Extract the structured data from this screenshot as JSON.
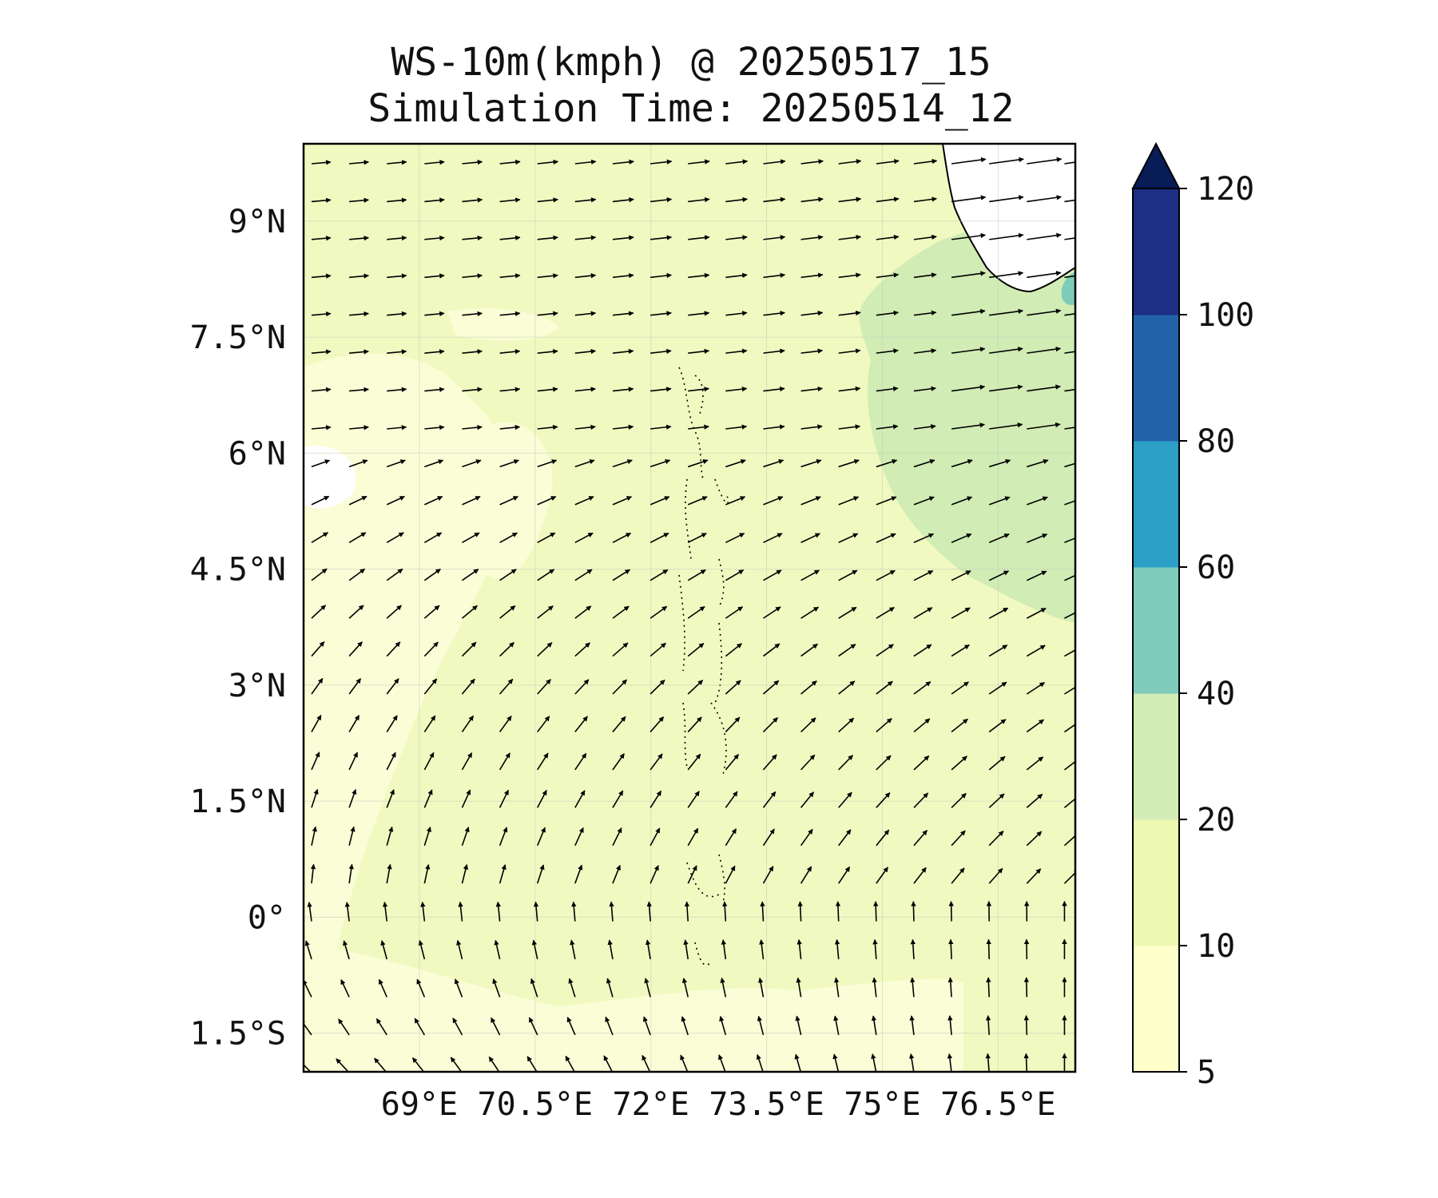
{
  "title": {
    "line1": "WS-10m(kmph) @ 20250517_15",
    "line2": "Simulation Time: 20250514_12"
  },
  "map": {
    "lon_range": [
      67.5,
      77.5
    ],
    "lat_range": [
      -2.0,
      10.0
    ],
    "gridlines": true,
    "x_ticks": [
      {
        "value": 69.0,
        "label": "69°E"
      },
      {
        "value": 70.5,
        "label": "70.5°E"
      },
      {
        "value": 72.0,
        "label": "72°E"
      },
      {
        "value": 73.5,
        "label": "73.5°E"
      },
      {
        "value": 75.0,
        "label": "75°E"
      },
      {
        "value": 76.5,
        "label": "76.5°E"
      }
    ],
    "y_ticks": [
      {
        "value": 9.0,
        "label": "9°N"
      },
      {
        "value": 7.5,
        "label": "7.5°N"
      },
      {
        "value": 6.0,
        "label": "6°N"
      },
      {
        "value": 4.5,
        "label": "4.5°N"
      },
      {
        "value": 3.0,
        "label": "3°N"
      },
      {
        "value": 1.5,
        "label": "1.5°N"
      },
      {
        "value": 0.0,
        "label": "0°"
      },
      {
        "value": -1.5,
        "label": "1.5°S"
      }
    ],
    "wind_field": {
      "description_units": "kmph",
      "typical_speed_range": [
        10,
        30
      ],
      "pattern": "southerly near equator turning westerly-southwesterly northward"
    }
  },
  "colorbar": {
    "levels": [
      5,
      10,
      20,
      40,
      60,
      80,
      100,
      120
    ],
    "labels": [
      "5",
      "10",
      "20",
      "40",
      "60",
      "80",
      "100",
      "120"
    ],
    "colors": [
      "#ffffcc",
      "#edf8b1",
      "#d1ecb4",
      "#7ecbbc",
      "#2c9fc7",
      "#2163a9",
      "#1d2e84"
    ],
    "extend_color": "#081d58",
    "extend": "max"
  }
}
